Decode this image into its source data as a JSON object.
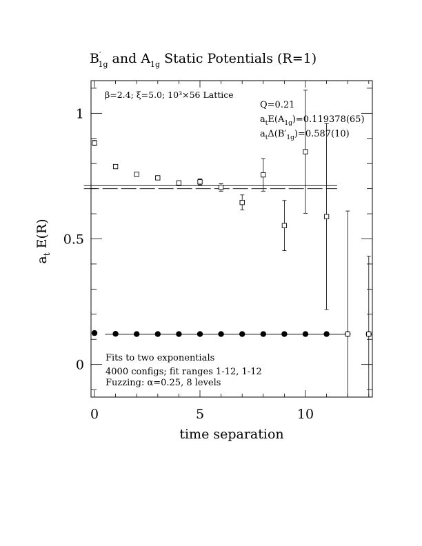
{
  "chart_data": {
    "type": "scatter",
    "title": "B′1g and A1g Static Potentials (R=1)",
    "title_parts": {
      "b": "B",
      "prime": "′",
      "b_sub": "1g",
      "and": " and A",
      "a_sub": "1g",
      "rest": " Static Potentials (R=1)"
    },
    "xlabel": "time separation",
    "ylabel": "a",
    "ylabel_sub": "t",
    "ylabel_rest": " E(R)",
    "xlim": [
      0,
      13
    ],
    "ylim": [
      -0.13,
      1.13
    ],
    "x_ticks": [
      0,
      5,
      10
    ],
    "x_tick_labels": [
      "0",
      "5",
      "10"
    ],
    "y_ticks": [
      0,
      0.5,
      1
    ],
    "y_tick_labels": [
      "0",
      "0.5",
      "1"
    ],
    "grid": false,
    "series": [
      {
        "marker": "filled-circle",
        "x": [
          0,
          1,
          2,
          3,
          4,
          5,
          6,
          7,
          8,
          9,
          10,
          11,
          12,
          13
        ],
        "y": [
          0.125,
          0.122,
          0.121,
          0.121,
          0.121,
          0.121,
          0.121,
          0.121,
          0.121,
          0.121,
          0.121,
          0.121,
          0.121,
          0.121
        ],
        "yerr": [
          0.002,
          0.002,
          0.002,
          0.002,
          0.002,
          0.002,
          0.002,
          0.002,
          0.002,
          0.002,
          0.002,
          0.002,
          0.002,
          0.002
        ]
      },
      {
        "marker": "open-square",
        "x": [
          0,
          1,
          2,
          3,
          4,
          5,
          6,
          7,
          8,
          9,
          10,
          11,
          12,
          13
        ],
        "y": [
          0.882,
          0.788,
          0.757,
          0.743,
          0.723,
          0.727,
          0.705,
          0.645,
          0.755,
          0.553,
          0.847,
          0.589,
          0.121,
          0.121
        ],
        "yerr": [
          0.01,
          0.008,
          0.008,
          0.008,
          0.008,
          0.012,
          0.015,
          0.03,
          0.065,
          0.1,
          0.245,
          0.37,
          0.49,
          0.31
        ]
      }
    ],
    "fit_lines": [
      {
        "style": "solid",
        "x_range": [
          0.5,
          12
        ],
        "y": 0.12
      },
      {
        "style": "solid",
        "x_range": [
          -0.5,
          11.5
        ],
        "y": 0.712
      },
      {
        "style": "dashed",
        "x_range": [
          -0.5,
          11.5
        ],
        "y": 0.7
      }
    ],
    "annotations": {
      "params": "β=2.4; ξ=5.0; 10³×56 Lattice",
      "q": "Q=0.21",
      "e_a1g": {
        "a": "a",
        "a_sub": "t",
        "mid": "E(A",
        "sub": "1g",
        "rest": ")=0.119378(65)"
      },
      "delta_b1g": {
        "a": "a",
        "a_sub": "t",
        "mid": "Δ(B′",
        "sub": "1g",
        "rest": ")=0.587(10)"
      },
      "fits": "Fits to two exponentials",
      "configs": "4000 configs; fit ranges 1-12, 1-12",
      "fuzzing": "Fuzzing: α=0.25, 8 levels"
    }
  }
}
